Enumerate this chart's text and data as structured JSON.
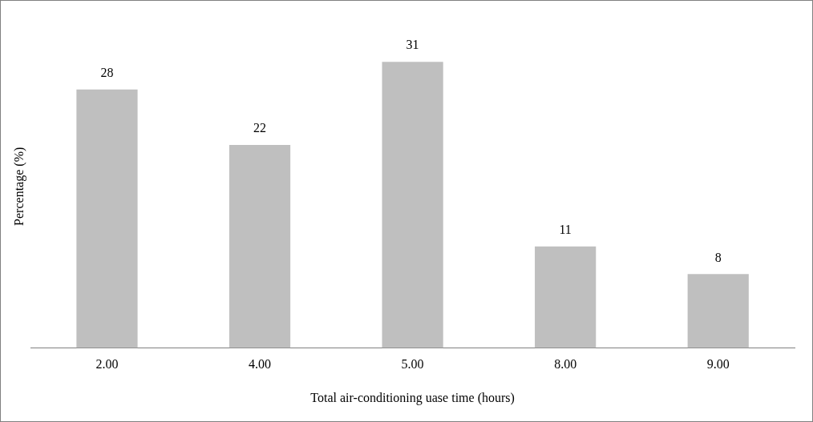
{
  "chart_data": {
    "type": "bar",
    "xlabel": "Total air-conditioning uase time (hours)",
    "ylabel": "Percentage (%)",
    "categories": [
      "2.00",
      "4.00",
      "5.00",
      "8.00",
      "9.00"
    ],
    "values": [
      28,
      22,
      31,
      11,
      8
    ],
    "color": "#bfbfbf",
    "data_labels": true,
    "grid": false,
    "legend": false,
    "tick_labels": "x"
  }
}
